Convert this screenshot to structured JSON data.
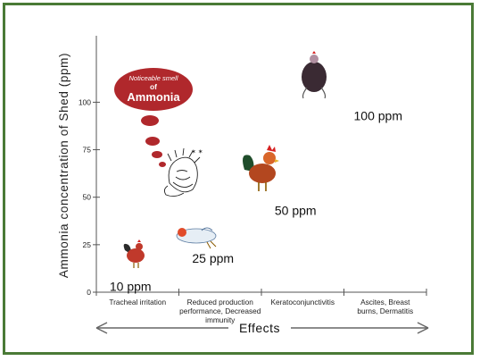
{
  "chart_data": {
    "type": "scatter",
    "ylabel": "Ammonia concentration of Shed (ppm)",
    "xlabel": "Effects",
    "yticks": [
      0,
      25,
      50,
      75,
      100
    ],
    "ylim": [
      0,
      135
    ],
    "categories": [
      [
        "Tracheal irritation"
      ],
      [
        "Reduced production",
        "performance, Decreased",
        "immunity"
      ],
      [
        "Keratoconjunctivitis"
      ],
      [
        "Ascites, Breast",
        "burns, Dermatitis"
      ]
    ],
    "points": [
      {
        "x": 0,
        "y": 10,
        "label": "10 ppm"
      },
      {
        "x": 1,
        "y": 25,
        "label": "25 ppm"
      },
      {
        "x": 2,
        "y": 50,
        "label": "50 ppm"
      },
      {
        "x": 3,
        "y": 100,
        "label": "100 ppm"
      }
    ],
    "annotation": {
      "line1": "Noticeable smell",
      "line2": "of",
      "line3": "Ammonia"
    },
    "grid": false,
    "colors": {
      "axis": "#555555",
      "bubble": "#b0282c",
      "frame": "#4a7a36",
      "rooster_red": "#c0392b",
      "rooster_dark": "#2b2b2b"
    }
  }
}
